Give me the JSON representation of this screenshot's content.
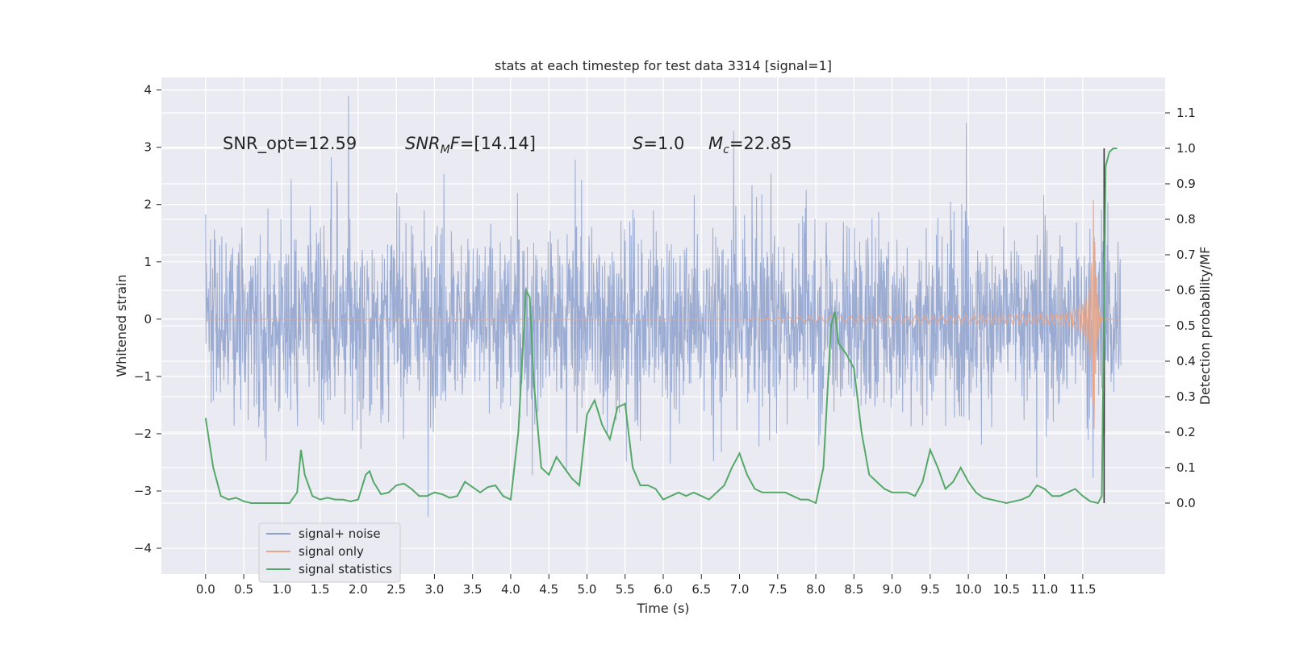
{
  "chart_data": {
    "type": "line",
    "title": "stats at each timestep for test data 3314 [signal=1]",
    "xlabel": "Time (s)",
    "ylabel": "Whitened strain",
    "ylabel_right": "Detection probability/MF",
    "xlim": [
      -0.58,
      12.58
    ],
    "ylim": [
      -4.45,
      4.22
    ],
    "ylim_right": [
      -0.2,
      1.2
    ],
    "x_ticks": [
      "0.0",
      "0.5",
      "1.0",
      "1.5",
      "2.0",
      "2.5",
      "3.0",
      "3.5",
      "4.0",
      "4.5",
      "5.0",
      "5.5",
      "6.0",
      "6.5",
      "7.0",
      "7.5",
      "8.0",
      "8.5",
      "9.0",
      "9.5",
      "10.0",
      "10.5",
      "11.0",
      "11.5"
    ],
    "y_ticks": [
      "4",
      "3",
      "2",
      "1",
      "0",
      "−1",
      "−2",
      "−3",
      "−4"
    ],
    "y_ticks_right": [
      "1.1",
      "1.0",
      "0.9",
      "0.8",
      "0.7",
      "0.6",
      "0.5",
      "0.4",
      "0.3",
      "0.2",
      "0.1",
      "0.0"
    ],
    "grid": true,
    "legend_position": "lower-left",
    "annotations": {
      "snr_opt": "SNR_opt=12.59",
      "snr_mf_main": "SNR",
      "snr_mf_sub": "M",
      "snr_mf_rest": "F",
      "snr_mf_value": "=[14.14]",
      "s_sym": "S",
      "s_value": "=1.0",
      "mc_sym": "M",
      "mc_sub": "c",
      "mc_value": "=22.85"
    },
    "series": [
      {
        "name": "signal+ noise",
        "color": "#8da0cb",
        "description_values": "dense noisy strain, amplitude mostly within -2.6..2.6",
        "x_range": [
          0.0,
          12.0
        ]
      },
      {
        "name": "signal only",
        "color": "#e5a58a",
        "chirp": {
          "start": 0.0,
          "merger": 11.65,
          "end": 12.0,
          "peak_amplitude": 2.4
        }
      },
      {
        "name": "signal statistics",
        "color": "#55a868",
        "x": [
          0.0,
          0.1,
          0.2,
          0.3,
          0.4,
          0.5,
          0.6,
          0.7,
          0.8,
          0.9,
          1.0,
          1.1,
          1.2,
          1.25,
          1.3,
          1.4,
          1.5,
          1.6,
          1.7,
          1.8,
          1.9,
          2.0,
          2.1,
          2.15,
          2.2,
          2.3,
          2.4,
          2.5,
          2.6,
          2.7,
          2.8,
          2.9,
          3.0,
          3.1,
          3.2,
          3.3,
          3.4,
          3.5,
          3.6,
          3.7,
          3.8,
          3.9,
          4.0,
          4.1,
          4.2,
          4.25,
          4.3,
          4.4,
          4.5,
          4.6,
          4.7,
          4.8,
          4.9,
          5.0,
          5.1,
          5.2,
          5.3,
          5.4,
          5.5,
          5.6,
          5.7,
          5.8,
          5.9,
          6.0,
          6.1,
          6.2,
          6.3,
          6.4,
          6.5,
          6.6,
          6.7,
          6.8,
          6.9,
          7.0,
          7.1,
          7.2,
          7.3,
          7.4,
          7.5,
          7.6,
          7.7,
          7.8,
          7.9,
          8.0,
          8.1,
          8.2,
          8.25,
          8.3,
          8.4,
          8.5,
          8.6,
          8.7,
          8.8,
          8.9,
          9.0,
          9.1,
          9.2,
          9.3,
          9.4,
          9.5,
          9.6,
          9.7,
          9.8,
          9.9,
          10.0,
          10.1,
          10.2,
          10.3,
          10.4,
          10.5,
          10.6,
          10.7,
          10.8,
          10.9,
          11.0,
          11.1,
          11.2,
          11.3,
          11.4,
          11.5,
          11.6,
          11.7,
          11.75,
          11.8,
          11.85,
          11.9,
          11.95
        ],
        "y": [
          0.24,
          0.1,
          0.02,
          0.01,
          0.015,
          0.005,
          0.0,
          0.0,
          0.0,
          0.0,
          0.0,
          0.0,
          0.03,
          0.15,
          0.08,
          0.02,
          0.01,
          0.015,
          0.01,
          0.01,
          0.005,
          0.01,
          0.08,
          0.09,
          0.06,
          0.025,
          0.03,
          0.05,
          0.055,
          0.04,
          0.02,
          0.02,
          0.03,
          0.025,
          0.015,
          0.02,
          0.06,
          0.045,
          0.03,
          0.045,
          0.05,
          0.02,
          0.01,
          0.2,
          0.6,
          0.58,
          0.35,
          0.1,
          0.08,
          0.13,
          0.1,
          0.07,
          0.05,
          0.25,
          0.29,
          0.22,
          0.18,
          0.27,
          0.28,
          0.1,
          0.05,
          0.05,
          0.04,
          0.01,
          0.02,
          0.03,
          0.02,
          0.03,
          0.02,
          0.01,
          0.03,
          0.05,
          0.1,
          0.14,
          0.08,
          0.04,
          0.03,
          0.03,
          0.03,
          0.03,
          0.02,
          0.01,
          0.01,
          0.0,
          0.1,
          0.5,
          0.54,
          0.45,
          0.42,
          0.38,
          0.2,
          0.08,
          0.06,
          0.04,
          0.03,
          0.03,
          0.03,
          0.02,
          0.06,
          0.15,
          0.1,
          0.04,
          0.06,
          0.1,
          0.06,
          0.03,
          0.015,
          0.01,
          0.005,
          0.0,
          0.005,
          0.01,
          0.02,
          0.05,
          0.04,
          0.02,
          0.02,
          0.03,
          0.04,
          0.02,
          0.005,
          0.0,
          0.02,
          0.95,
          0.99,
          1.0,
          1.0
        ]
      }
    ],
    "vertical_marker": {
      "x": 11.78,
      "y_from": 0.0,
      "y_to": 1.0,
      "color": "#333333"
    }
  }
}
